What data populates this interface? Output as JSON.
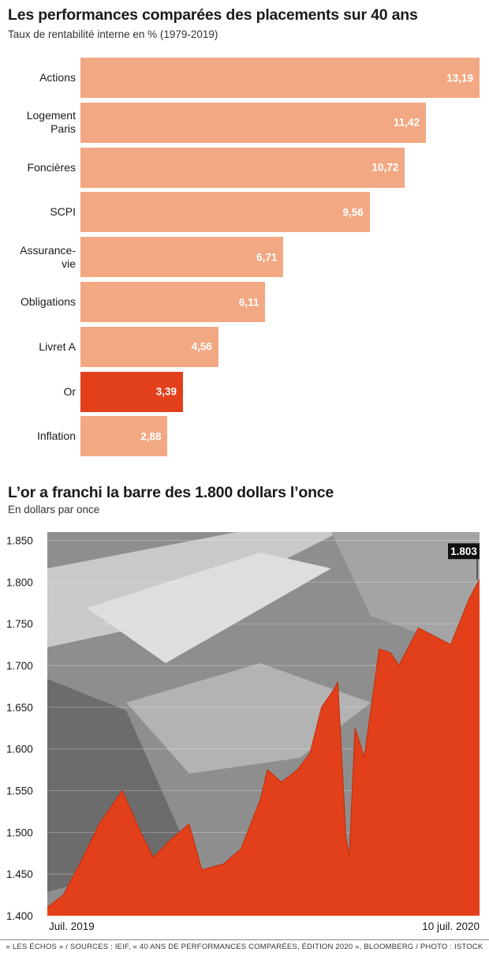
{
  "chart_data": [
    {
      "type": "bar",
      "title": "Les performances comparées des placements sur 40 ans",
      "subtitle": "Taux de rentabilité interne en % (1979-2019)",
      "categories": [
        "Actions",
        "Logement Paris",
        "Foncières",
        "SCPI",
        "Assurance-vie",
        "Obligations",
        "Livret A",
        "Or",
        "Inflation"
      ],
      "category_lines": [
        [
          "Actions"
        ],
        [
          "Logement",
          "Paris"
        ],
        [
          "Foncières"
        ],
        [
          "SCPI"
        ],
        [
          "Assurance-",
          "vie"
        ],
        [
          "Obligations"
        ],
        [
          "Livret A"
        ],
        [
          "Or"
        ],
        [
          "Inflation"
        ]
      ],
      "values": [
        13.19,
        11.42,
        10.72,
        9.56,
        6.71,
        6.11,
        4.56,
        3.39,
        2.88
      ],
      "value_labels": [
        "13,19",
        "11,42",
        "10,72",
        "9,56",
        "6,71",
        "6,11",
        "4,56",
        "3,39",
        "2,88"
      ],
      "highlight_category": "Or",
      "colors": {
        "default": "#f2a882",
        "highlight": "#e2401b"
      },
      "xlim": [
        0,
        13.19
      ]
    },
    {
      "type": "area",
      "title": "L’or a franchi la barre des 1.800 dollars l’once",
      "subtitle": "En dollars par once",
      "y_ticks": [
        1400,
        1450,
        1500,
        1550,
        1600,
        1650,
        1700,
        1750,
        1800,
        1850
      ],
      "y_tick_labels": [
        "1.400",
        "1.450",
        "1.500",
        "1.550",
        "1.600",
        "1.650",
        "1.700",
        "1.750",
        "1.800",
        "1.850"
      ],
      "ylim": [
        1400,
        1860
      ],
      "x_labels": [
        "Juil. 2019",
        "10 juil. 2020"
      ],
      "x": [
        "2019-07-01",
        "2019-07-15",
        "2019-08-01",
        "2019-08-15",
        "2019-09-04",
        "2019-09-20",
        "2019-10-01",
        "2019-10-15",
        "2019-11-01",
        "2019-11-12",
        "2019-12-01",
        "2019-12-16",
        "2020-01-02",
        "2020-01-08",
        "2020-01-20",
        "2020-02-03",
        "2020-02-14",
        "2020-02-24",
        "2020-03-06",
        "2020-03-09",
        "2020-03-16",
        "2020-03-19",
        "2020-03-24",
        "2020-04-01",
        "2020-04-14",
        "2020-04-24",
        "2020-05-01",
        "2020-05-18",
        "2020-06-01",
        "2020-06-15",
        "2020-07-01",
        "2020-07-10"
      ],
      "values": [
        1410,
        1425,
        1470,
        1510,
        1550,
        1500,
        1470,
        1490,
        1510,
        1455,
        1462,
        1480,
        1540,
        1575,
        1560,
        1575,
        1595,
        1650,
        1672,
        1680,
        1495,
        1470,
        1625,
        1590,
        1720,
        1715,
        1700,
        1745,
        1735,
        1725,
        1780,
        1803
      ],
      "highlight_label": "1.803",
      "colors": {
        "area": "#e2401b",
        "label_bg": "#111111"
      }
    }
  ],
  "footer": "« LES ÉCHOS » / SOURCES : IEIF, « 40 ANS DE PERFORMANCES COMPARÉES, ÉDITION 2020 », BLOOMBERG / PHOTO : ISTOCK"
}
